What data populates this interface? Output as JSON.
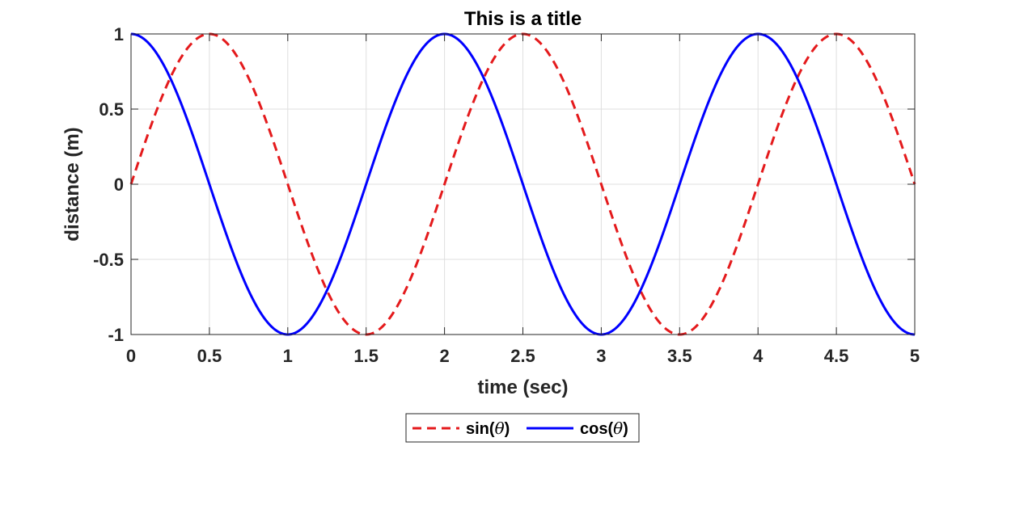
{
  "chart_data": {
    "type": "line",
    "title": "This is a title",
    "xlabel": "time (sec)",
    "ylabel": "distance (m)",
    "xlim": [
      0,
      5
    ],
    "ylim": [
      -1,
      1
    ],
    "x_ticks": [
      0,
      0.5,
      1,
      1.5,
      2,
      2.5,
      3,
      3.5,
      4,
      4.5,
      5
    ],
    "x_tick_labels": [
      "0",
      "0.5",
      "1",
      "1.5",
      "2",
      "2.5",
      "3",
      "3.5",
      "4",
      "4.5",
      "5"
    ],
    "y_ticks": [
      1,
      0.5,
      0,
      -0.5,
      -1
    ],
    "y_tick_labels": [
      "1",
      "0.5",
      "0",
      "-0.5",
      "-1"
    ],
    "grid": true,
    "legend_position": "bottom-center, outside plot",
    "series": [
      {
        "name": "sin(θ)",
        "label_prefix": "sin(",
        "label_symbol": "θ",
        "label_suffix": ")",
        "function": "sin(pi * t)",
        "color": "#e41a1c",
        "line_style": "dashed",
        "x": [
          0,
          0.25,
          0.5,
          0.75,
          1,
          1.25,
          1.5,
          1.75,
          2,
          2.25,
          2.5,
          2.75,
          3,
          3.25,
          3.5,
          3.75,
          4,
          4.25,
          4.5,
          4.75,
          5
        ],
        "y": [
          0,
          0.707,
          1,
          0.707,
          0,
          -0.707,
          -1,
          -0.707,
          0,
          0.707,
          1,
          0.707,
          0,
          -0.707,
          -1,
          -0.707,
          0,
          0.707,
          1,
          0.707,
          0
        ]
      },
      {
        "name": "cos(θ)",
        "label_prefix": "cos(",
        "label_symbol": "θ",
        "label_suffix": ")",
        "function": "cos(pi * t)",
        "color": "#0000ff",
        "line_style": "solid",
        "x": [
          0,
          0.25,
          0.5,
          0.75,
          1,
          1.25,
          1.5,
          1.75,
          2,
          2.25,
          2.5,
          2.75,
          3,
          3.25,
          3.5,
          3.75,
          4,
          4.25,
          4.5,
          4.75,
          5
        ],
        "y": [
          1,
          0.707,
          0,
          -0.707,
          -1,
          -0.707,
          0,
          0.707,
          1,
          0.707,
          0,
          -0.707,
          -1,
          -0.707,
          0,
          0.707,
          1,
          0.707,
          0,
          -0.707,
          -1
        ]
      }
    ]
  }
}
